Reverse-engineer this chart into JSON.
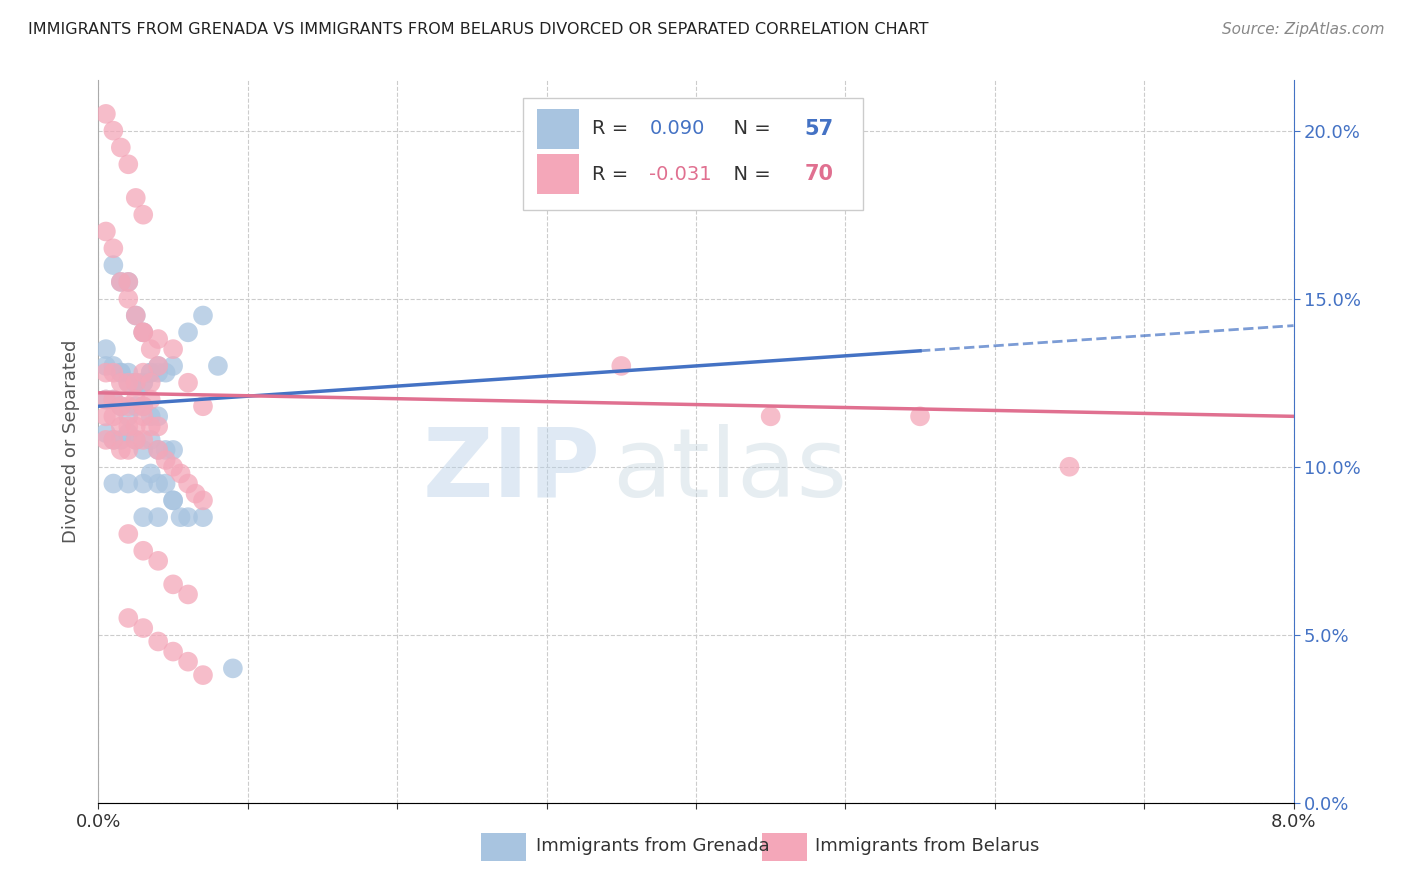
{
  "title": "IMMIGRANTS FROM GRENADA VS IMMIGRANTS FROM BELARUS DIVORCED OR SEPARATED CORRELATION CHART",
  "source": "Source: ZipAtlas.com",
  "ylabel": "Divorced or Separated",
  "legend_label1": "Immigrants from Grenada",
  "legend_label2": "Immigrants from Belarus",
  "r1": 0.09,
  "n1": 57,
  "r2": -0.031,
  "n2": 70,
  "color1": "#a8c4e0",
  "color1_line": "#4472c4",
  "color2": "#f4a7b9",
  "color2_line": "#e07090",
  "color_text_blue": "#4472c4",
  "color_text_pink": "#e07090",
  "xlim": [
    0.0,
    0.08
  ],
  "ylim": [
    0.0,
    0.215
  ],
  "yticks": [
    0.0,
    0.05,
    0.1,
    0.15,
    0.2
  ],
  "yticklabels_right": [
    "0.0%",
    "5.0%",
    "10.0%",
    "15.0%",
    "20.0%"
  ],
  "xticks": [
    0.0,
    0.01,
    0.02,
    0.03,
    0.04,
    0.05,
    0.06,
    0.07,
    0.08
  ],
  "xticklabels": [
    "0.0%",
    "",
    "",
    "",
    "",
    "",
    "",
    "",
    "8.0%"
  ],
  "grenada_x": [
    0.0005,
    0.001,
    0.0015,
    0.002,
    0.0025,
    0.003,
    0.0005,
    0.001,
    0.0015,
    0.002,
    0.0025,
    0.003,
    0.0035,
    0.004,
    0.0005,
    0.001,
    0.0015,
    0.002,
    0.0025,
    0.003,
    0.0035,
    0.004,
    0.0005,
    0.001,
    0.0015,
    0.002,
    0.0025,
    0.003,
    0.0035,
    0.004,
    0.0045,
    0.005,
    0.0015,
    0.002,
    0.0025,
    0.003,
    0.0035,
    0.004,
    0.0045,
    0.005,
    0.003,
    0.0035,
    0.004,
    0.0045,
    0.005,
    0.0055,
    0.006,
    0.007,
    0.001,
    0.002,
    0.003,
    0.004,
    0.005,
    0.006,
    0.007,
    0.008,
    0.009
  ],
  "grenada_y": [
    0.135,
    0.16,
    0.155,
    0.155,
    0.145,
    0.14,
    0.13,
    0.13,
    0.128,
    0.125,
    0.125,
    0.125,
    0.128,
    0.128,
    0.12,
    0.12,
    0.118,
    0.115,
    0.118,
    0.118,
    0.115,
    0.115,
    0.11,
    0.108,
    0.108,
    0.11,
    0.108,
    0.105,
    0.108,
    0.105,
    0.105,
    0.105,
    0.128,
    0.128,
    0.125,
    0.125,
    0.128,
    0.13,
    0.128,
    0.13,
    0.095,
    0.098,
    0.095,
    0.095,
    0.09,
    0.085,
    0.085,
    0.085,
    0.095,
    0.095,
    0.085,
    0.085,
    0.09,
    0.14,
    0.145,
    0.13,
    0.04
  ],
  "belarus_x": [
    0.0005,
    0.001,
    0.0015,
    0.002,
    0.0025,
    0.003,
    0.0005,
    0.001,
    0.0015,
    0.002,
    0.0025,
    0.003,
    0.0035,
    0.004,
    0.0005,
    0.001,
    0.0015,
    0.002,
    0.0025,
    0.003,
    0.0035,
    0.0005,
    0.001,
    0.0015,
    0.002,
    0.0025,
    0.003,
    0.0035,
    0.0005,
    0.001,
    0.0015,
    0.002,
    0.0025,
    0.003,
    0.0035,
    0.004,
    0.0005,
    0.001,
    0.0015,
    0.002,
    0.0025,
    0.003,
    0.004,
    0.0045,
    0.005,
    0.0055,
    0.006,
    0.0065,
    0.007,
    0.002,
    0.003,
    0.004,
    0.005,
    0.006,
    0.007,
    0.002,
    0.003,
    0.004,
    0.005,
    0.006,
    0.035,
    0.045,
    0.055,
    0.065,
    0.002,
    0.003,
    0.004,
    0.005,
    0.006,
    0.007
  ],
  "belarus_y": [
    0.205,
    0.2,
    0.195,
    0.19,
    0.18,
    0.175,
    0.17,
    0.165,
    0.155,
    0.15,
    0.145,
    0.14,
    0.135,
    0.13,
    0.128,
    0.128,
    0.125,
    0.125,
    0.125,
    0.128,
    0.125,
    0.12,
    0.12,
    0.118,
    0.118,
    0.12,
    0.118,
    0.12,
    0.115,
    0.115,
    0.112,
    0.112,
    0.112,
    0.115,
    0.112,
    0.112,
    0.108,
    0.108,
    0.105,
    0.105,
    0.108,
    0.108,
    0.105,
    0.102,
    0.1,
    0.098,
    0.095,
    0.092,
    0.09,
    0.155,
    0.14,
    0.138,
    0.135,
    0.125,
    0.118,
    0.08,
    0.075,
    0.072,
    0.065,
    0.062,
    0.13,
    0.115,
    0.115,
    0.1,
    0.055,
    0.052,
    0.048,
    0.045,
    0.042,
    0.038
  ],
  "trend_blue_x0": 0.0,
  "trend_blue_y0": 0.118,
  "trend_blue_x1": 0.08,
  "trend_blue_y1": 0.142,
  "trend_blue_solid_end": 0.055,
  "trend_pink_x0": 0.0,
  "trend_pink_y0": 0.122,
  "trend_pink_x1": 0.08,
  "trend_pink_y1": 0.115
}
